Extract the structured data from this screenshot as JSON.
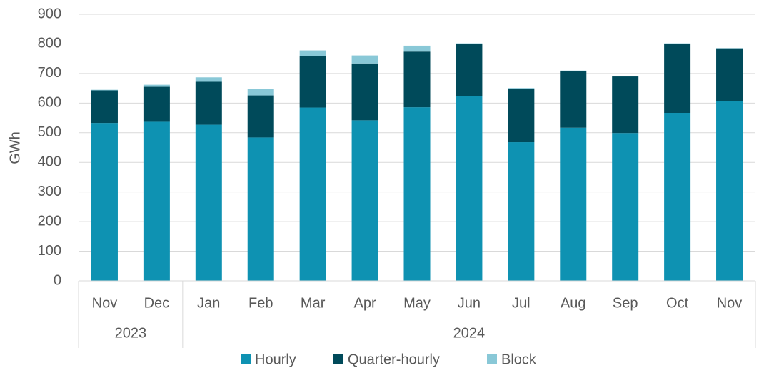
{
  "chart_data": {
    "type": "stacked_bar",
    "ylabel": "GWh",
    "categories": [
      "Nov",
      "Dec",
      "Jan",
      "Feb",
      "Mar",
      "Apr",
      "May",
      "Jun",
      "Jul",
      "Aug",
      "Sep",
      "Oct",
      "Nov"
    ],
    "groups": [
      {
        "name": "2023",
        "count": 2
      },
      {
        "name": "2024",
        "count": 11
      }
    ],
    "series": [
      {
        "name": "Hourly",
        "color": "#0e92b2",
        "values": [
          533,
          537,
          527,
          484,
          585,
          542,
          586,
          624,
          468,
          517,
          499,
          567,
          606
        ]
      },
      {
        "name": "Quarter-hourly",
        "color": "#004a5a",
        "values": [
          110,
          118,
          145,
          142,
          175,
          192,
          188,
          176,
          181,
          190,
          191,
          233,
          179
        ]
      },
      {
        "name": "Block",
        "color": "#89c8d7",
        "values": [
          2,
          7,
          15,
          22,
          18,
          27,
          20,
          2,
          2,
          3,
          1,
          2,
          1
        ]
      }
    ],
    "ylim": [
      0,
      900
    ],
    "yticks": [
      0,
      100,
      200,
      300,
      400,
      500,
      600,
      700,
      800,
      900
    ],
    "grid": true,
    "legend": "bottom"
  }
}
